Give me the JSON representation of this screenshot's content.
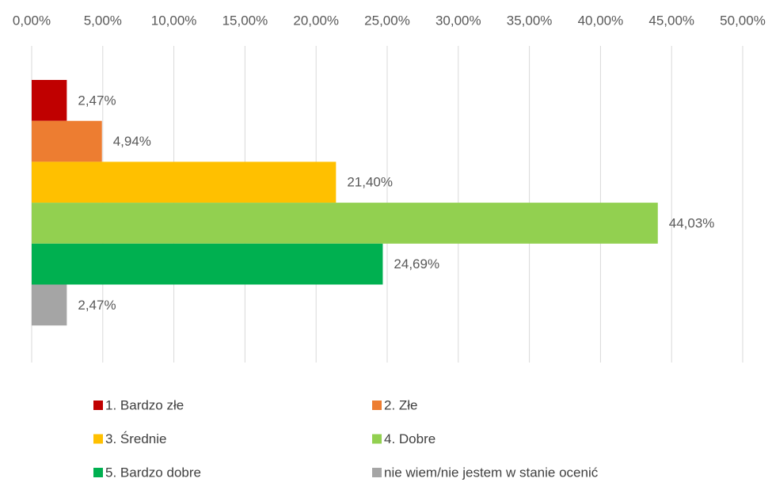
{
  "chart_data": {
    "type": "bar",
    "orientation": "horizontal",
    "categories": [
      null
    ],
    "series": [
      {
        "name": "1. Bardzo złe",
        "color": "#c00000",
        "values": [
          2.47
        ],
        "value_labels": [
          "2,47%"
        ]
      },
      {
        "name": "2. Złe",
        "color": "#ed7d31",
        "values": [
          4.94
        ],
        "value_labels": [
          "4,94%"
        ]
      },
      {
        "name": "3. Średnie",
        "color": "#ffc000",
        "values": [
          21.4
        ],
        "value_labels": [
          "21,40%"
        ]
      },
      {
        "name": "4. Dobre",
        "color": "#92d050",
        "values": [
          44.03
        ],
        "value_labels": [
          "44,03%"
        ]
      },
      {
        "name": "5. Bardzo dobre",
        "color": "#00b050",
        "values": [
          24.69
        ],
        "value_labels": [
          "24,69%"
        ]
      },
      {
        "name": "nie wiem/nie jestem w stanie ocenić",
        "color": "#a5a5a5",
        "values": [
          2.47
        ],
        "value_labels": [
          "2,47%"
        ]
      }
    ],
    "xlim": [
      0,
      50
    ],
    "xticks": [
      {
        "value": 0,
        "label": "0,00%"
      },
      {
        "value": 5,
        "label": "5,00%"
      },
      {
        "value": 10,
        "label": "10,00%"
      },
      {
        "value": 15,
        "label": "15,00%"
      },
      {
        "value": 20,
        "label": "20,00%"
      },
      {
        "value": 25,
        "label": "25,00%"
      },
      {
        "value": 30,
        "label": "30,00%"
      },
      {
        "value": 35,
        "label": "35,00%"
      },
      {
        "value": 40,
        "label": "40,00%"
      },
      {
        "value": 45,
        "label": "45,00%"
      },
      {
        "value": 50,
        "label": "50,00%"
      }
    ],
    "grid": true,
    "legend": "bottom"
  }
}
